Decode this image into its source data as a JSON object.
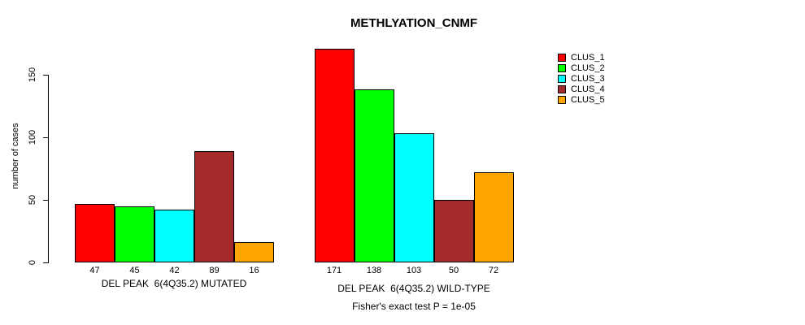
{
  "chart_data": {
    "type": "bar",
    "title": "METHLYATION_CNMF",
    "ylabel": "number of cases",
    "xlabel": "",
    "yticks": [
      0,
      50,
      100,
      150
    ],
    "ylim": [
      0,
      150
    ],
    "grid": false,
    "legend_position": "right",
    "series": [
      {
        "name": "CLUS_1",
        "color": "#FF0000"
      },
      {
        "name": "CLUS_2",
        "color": "#00FF00"
      },
      {
        "name": "CLUS_3",
        "color": "#00FFFF"
      },
      {
        "name": "CLUS_4",
        "color": "#A52A2A"
      },
      {
        "name": "CLUS_5",
        "color": "#FFA500"
      }
    ],
    "groups": [
      {
        "label": "DEL PEAK  6(4Q35.2) MUTATED",
        "values": [
          47,
          45,
          42,
          89,
          16
        ]
      },
      {
        "label": "DEL PEAK  6(4Q35.2) WILD-TYPE",
        "values": [
          171,
          138,
          103,
          50,
          72
        ]
      }
    ],
    "footnote": "Fisher's exact test P = 1e-05"
  }
}
